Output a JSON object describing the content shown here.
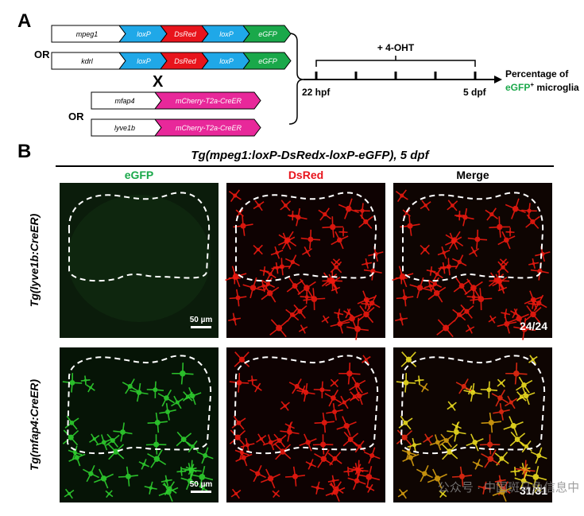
{
  "panel_a": {
    "label": "A",
    "constructs": [
      {
        "promoter": "mpeg1",
        "segments": [
          {
            "text": "loxP",
            "color": "#1fa8e8"
          },
          {
            "text": "DsRed",
            "color": "#e8141c"
          },
          {
            "text": "loxP",
            "color": "#1fa8e8"
          },
          {
            "text": "eGFP",
            "color": "#1aa84a"
          }
        ]
      },
      {
        "promoter": "kdrl",
        "segments": [
          {
            "text": "loxP",
            "color": "#1fa8e8"
          },
          {
            "text": "DsRed",
            "color": "#e8141c"
          },
          {
            "text": "loxP",
            "color": "#1fa8e8"
          },
          {
            "text": "eGFP",
            "color": "#1aa84a"
          }
        ]
      },
      {
        "promoter": "mfap4",
        "segments": [
          {
            "text": "mCherry-T2a-CreER",
            "color": "#e8289a"
          }
        ]
      },
      {
        "promoter": "lyve1b",
        "segments": [
          {
            "text": "mCherry-T2a-CreER",
            "color": "#e8289a"
          }
        ]
      }
    ],
    "or_labels": [
      "OR",
      "OR"
    ],
    "cross": "X",
    "treatment": "+ 4-OHT",
    "start": "22 hpf",
    "end": "5 dpf",
    "readout": {
      "line1": "Percentage of",
      "marker": "eGFP",
      "superscript": "+",
      "line2": " microglia"
    }
  },
  "panel_b": {
    "label": "B",
    "title": "Tg(mpeg1:loxP-DsRedx-loxP-eGFP), 5 dpf",
    "columns": [
      {
        "text": "eGFP",
        "color": "#1aa84a"
      },
      {
        "text": "DsRed",
        "color": "#e8141c"
      },
      {
        "text": "Merge",
        "color": "#000000"
      }
    ],
    "rows": [
      {
        "label": "Tg(lyve1b:CreER)",
        "scale_bar": "50 µm",
        "count": "24/24"
      },
      {
        "label": "Tg(mfap4:CreER)",
        "scale_bar": "50 µm",
        "count": "31/31"
      }
    ]
  },
  "watermark": "公众号 · 中国斑马鱼信息中"
}
